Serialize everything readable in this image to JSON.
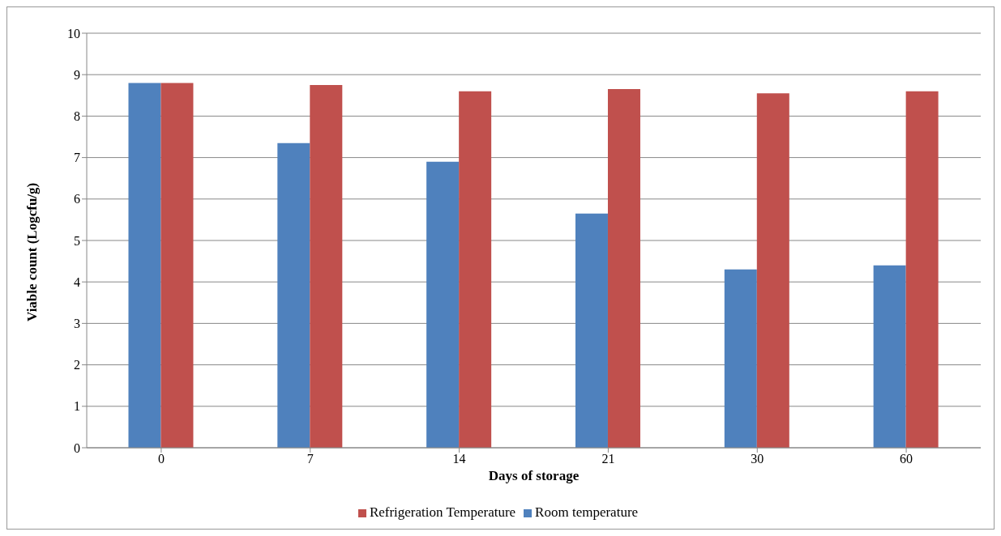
{
  "chart_data": {
    "type": "bar",
    "xlabel": "Days of storage",
    "ylabel": "Viable count (Logcfu/g)",
    "categories": [
      "0",
      "7",
      "14",
      "21",
      "30",
      "60"
    ],
    "series": [
      {
        "name": "Room temperature",
        "color": "#4f81bd",
        "values": [
          8.8,
          7.35,
          6.9,
          5.65,
          4.3,
          4.4
        ]
      },
      {
        "name": "Refrigeration Temperature",
        "color": "#c0504d",
        "values": [
          8.8,
          8.75,
          8.6,
          8.65,
          8.55,
          8.6
        ]
      }
    ],
    "ylim": [
      0,
      10
    ],
    "yticks": [
      0,
      1,
      2,
      3,
      4,
      5,
      6,
      7,
      8,
      9,
      10
    ],
    "grid": "y",
    "legend": "bottom"
  }
}
